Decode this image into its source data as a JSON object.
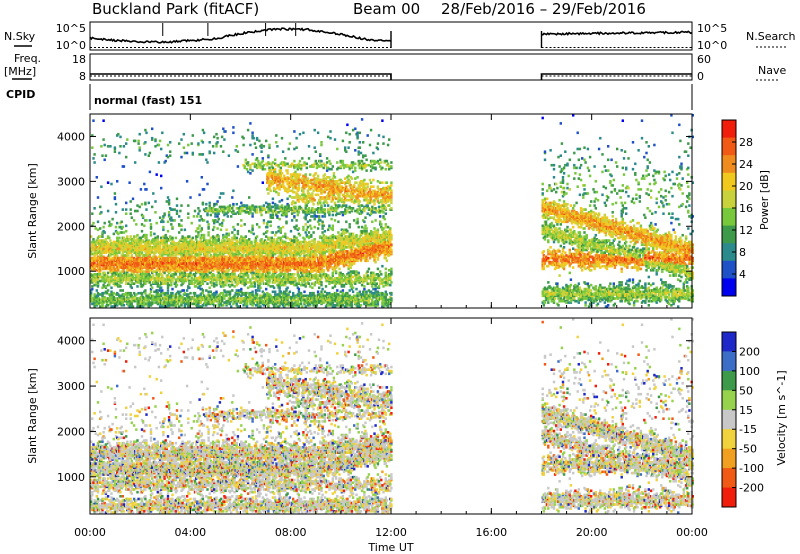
{
  "header": {
    "station": "Buckland Park (fitACF)",
    "beam": "Beam 00",
    "dates": "28/Feb/2016 – 29/Feb/2016"
  },
  "summary": {
    "nsky_label": "N.Sky",
    "nsearch_label": "N.Search",
    "noise_ticks": [
      "10^5",
      "10^0"
    ],
    "freq_label_1": "Freq.",
    "freq_label_2": "[MHz]",
    "freq_ticks": [
      "18",
      "8"
    ],
    "nave_label": "Nave",
    "nave_ticks": [
      "60",
      "0"
    ],
    "cpid_label": "CPID",
    "cpid_value": "normal (fast) 151"
  },
  "colors": {
    "power_scale": [
      "#0000f0",
      "#1e50c8",
      "#2b8a8c",
      "#3c9a4a",
      "#78c83c",
      "#c8d23c",
      "#f0c81e",
      "#f08c1e",
      "#f05a14",
      "#f01e0a"
    ],
    "velocity_scale": [
      "#f01e0a",
      "#f05a14",
      "#f0a01e",
      "#f0d23c",
      "#c8c8c8",
      "#96d24b",
      "#3c9a4a",
      "#3c6ec8",
      "#1e28c8"
    ],
    "frame": "#000000",
    "background": "#ffffff"
  },
  "chart_data": [
    {
      "type": "heatmap",
      "quantity": "power",
      "ylabel": "Slant Range [km]",
      "y_ticks": [
        1000,
        2000,
        3000,
        4000
      ],
      "ylim": [
        180,
        4500
      ],
      "colorbar_label": "Power [dB]",
      "colorbar_ticks": [
        4,
        8,
        12,
        16,
        20,
        24,
        28
      ],
      "colorbar_range": [
        0,
        32
      ],
      "data_gaps_ut": [
        [
          12.0,
          18.0
        ]
      ],
      "echo_bands_km": [
        {
          "ut_start": 0,
          "ut_end": 12,
          "range_low": 1000,
          "range_high": 1300,
          "power_db": 26
        },
        {
          "ut_start": 0,
          "ut_end": 12,
          "range_low": 200,
          "range_high": 500,
          "power_db": 22
        },
        {
          "ut_start": 18,
          "ut_end": 24,
          "range_low": 1000,
          "range_high": 1300,
          "power_db": 26
        }
      ]
    },
    {
      "type": "heatmap",
      "quantity": "velocity",
      "ylabel": "Slant Range [km]",
      "y_ticks": [
        1000,
        2000,
        3000,
        4000
      ],
      "ylim": [
        180,
        4500
      ],
      "colorbar_label": "Velocity [m s^-1]",
      "colorbar_ticks": [
        200,
        100,
        50,
        15,
        -15,
        -50,
        -100,
        -200
      ],
      "data_gaps_ut": [
        [
          12.0,
          18.0
        ]
      ]
    }
  ],
  "time_axis": {
    "label": "Time UT",
    "ticks": [
      "00:00",
      "04:00",
      "08:00",
      "12:00",
      "16:00",
      "20:00",
      "00:00"
    ],
    "range_hours": [
      0,
      24
    ]
  }
}
